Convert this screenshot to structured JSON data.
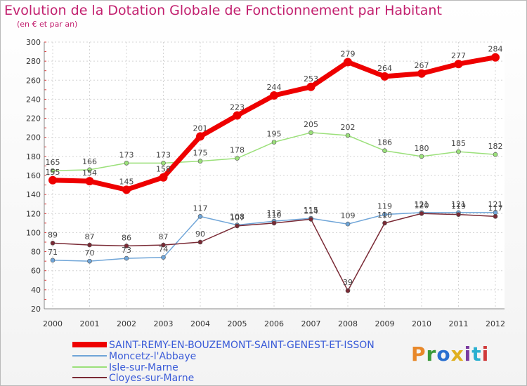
{
  "header": {
    "title": "Evolution de la Dotation Globale de Fonctionnement par Habitant",
    "subtitle": "(en € et par an)"
  },
  "logo": {
    "text": "Proxiti",
    "colors": [
      "#e8882a",
      "#3a9a3a",
      "#2a6fd0",
      "#e0b020",
      "#7a3aa0",
      "#2ab0d0",
      "#d03a3a"
    ]
  },
  "chart_data": {
    "type": "line",
    "x": [
      2000,
      2001,
      2002,
      2003,
      2004,
      2005,
      2006,
      2007,
      2008,
      2009,
      2010,
      2011,
      2012
    ],
    "ylim": [
      20,
      300
    ],
    "yticks": [
      20,
      40,
      60,
      80,
      100,
      120,
      140,
      160,
      180,
      200,
      220,
      240,
      260,
      280,
      300
    ],
    "grid": true,
    "legend_position": "bottom-left",
    "series": [
      {
        "name": "SAINT-REMY-EN-BOUZEMONT-SAINT-GENEST-ET-ISSON",
        "color": "#ee0000",
        "width": 7,
        "values": [
          155,
          154,
          145,
          158,
          201,
          223,
          244,
          253,
          279,
          264,
          267,
          277,
          284
        ]
      },
      {
        "name": "Moncetz-l'Abbaye",
        "color": "#6fa5d8",
        "width": 1.5,
        "values": [
          71,
          70,
          73,
          74,
          117,
          108,
          112,
          115,
          109,
          119,
          121,
          121,
          121
        ]
      },
      {
        "name": "Isle-sur-Marne",
        "color": "#9be07a",
        "width": 1.5,
        "values": [
          165,
          166,
          173,
          173,
          175,
          178,
          195,
          205,
          202,
          186,
          180,
          185,
          182
        ]
      },
      {
        "name": "Cloyes-sur-Marne",
        "color": "#7a2a35",
        "width": 1.5,
        "values": [
          89,
          87,
          86,
          87,
          90,
          107,
          110,
          114,
          39,
          110,
          120,
          119,
          117
        ]
      }
    ]
  }
}
